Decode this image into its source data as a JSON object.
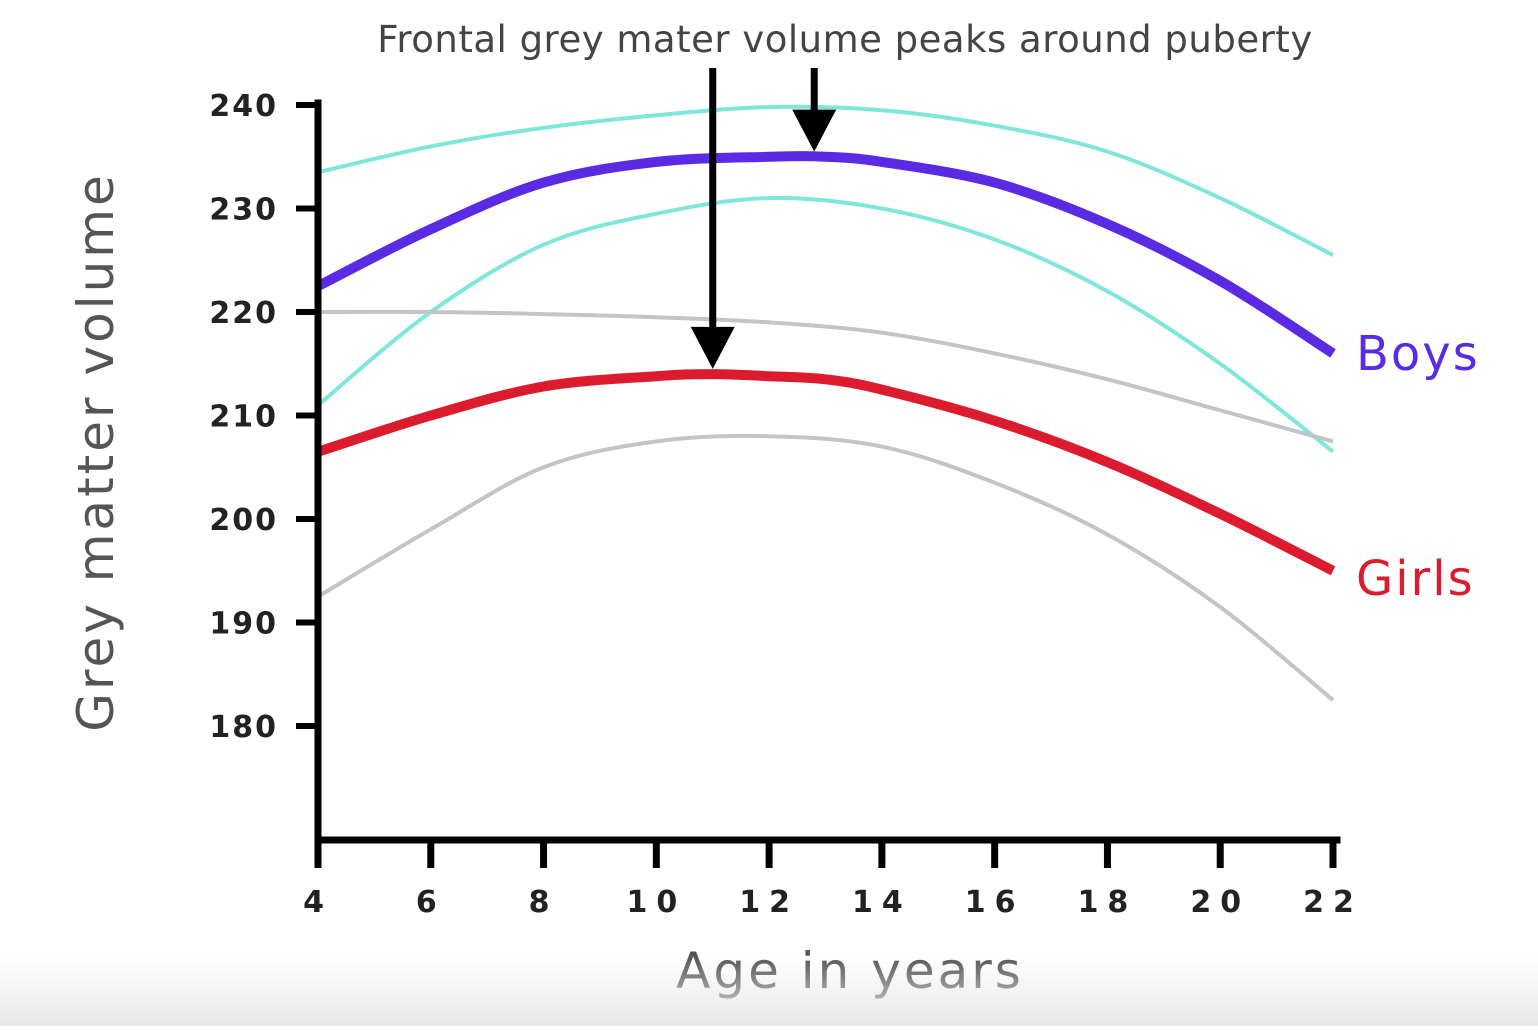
{
  "chart_data": {
    "type": "line",
    "annotation": "Frontal grey mater volume peaks around puberty",
    "xlabel": "Age in years",
    "ylabel": "Grey matter volume",
    "xlim": [
      4,
      22
    ],
    "ylim": [
      170,
      240
    ],
    "x_ticks": [
      4,
      6,
      8,
      10,
      12,
      14,
      16,
      18,
      20,
      22
    ],
    "x_tick_labels": [
      "4",
      "6",
      "8",
      "10",
      "12",
      "14",
      "16",
      "18",
      "20",
      "22"
    ],
    "y_ticks": [
      180,
      190,
      200,
      210,
      220,
      230,
      240
    ],
    "y_tick_labels": [
      "180",
      "190",
      "200",
      "210",
      "220",
      "230",
      "240"
    ],
    "grid": false,
    "legend": "inline-right",
    "series": [
      {
        "name": "Boys",
        "color": "#5a2be3",
        "role": "mean",
        "x": [
          4,
          6,
          8,
          10,
          12,
          13,
          14,
          16,
          18,
          20,
          22
        ],
        "y": [
          222.5,
          228.0,
          232.5,
          234.5,
          235.0,
          235.0,
          234.5,
          232.5,
          228.5,
          223.0,
          216.0
        ]
      },
      {
        "name": "Girls",
        "color": "#dc1c2e",
        "role": "mean",
        "x": [
          4,
          6,
          8,
          10,
          11,
          12,
          13,
          14,
          16,
          18,
          20,
          22
        ],
        "y": [
          206.5,
          210.0,
          212.8,
          213.8,
          214.0,
          213.8,
          213.5,
          212.5,
          209.5,
          205.5,
          200.5,
          195.0
        ]
      },
      {
        "color": "#7fe6dc",
        "role": "band",
        "x": [
          4,
          6,
          8,
          10,
          12,
          14,
          16,
          18,
          20,
          22
        ],
        "y": [
          233.5,
          236.0,
          237.8,
          239.0,
          239.8,
          239.5,
          238.0,
          235.5,
          231.0,
          225.5
        ]
      },
      {
        "color": "#7fe6dc",
        "role": "band",
        "x": [
          4,
          6,
          8,
          10,
          12,
          14,
          16,
          18,
          20,
          22
        ],
        "y": [
          211.0,
          220.0,
          226.5,
          229.5,
          231.0,
          230.0,
          227.0,
          222.0,
          215.0,
          206.5
        ]
      },
      {
        "color": "#c4c4c8",
        "role": "band",
        "x": [
          4,
          6,
          8,
          10,
          12,
          14,
          16,
          18,
          20,
          22
        ],
        "y": [
          220.0,
          220.0,
          219.8,
          219.5,
          219.0,
          218.0,
          216.0,
          213.5,
          210.5,
          207.5
        ]
      },
      {
        "color": "#c4c4c8",
        "role": "band",
        "x": [
          4,
          6,
          8,
          10,
          12,
          14,
          16,
          18,
          20,
          22
        ],
        "y": [
          192.5,
          199.0,
          205.0,
          207.5,
          208.0,
          207.0,
          203.5,
          198.5,
          191.5,
          182.5
        ]
      }
    ],
    "arrows": [
      {
        "x": 11,
        "y_tip": 214.5
      },
      {
        "x": 12.8,
        "y_tip": 235.5
      }
    ],
    "colors": {
      "axis": "#000000",
      "tick_label": "#222222",
      "axis_title": "#555555",
      "annotation": "#444444",
      "arrow": "#000000"
    }
  }
}
